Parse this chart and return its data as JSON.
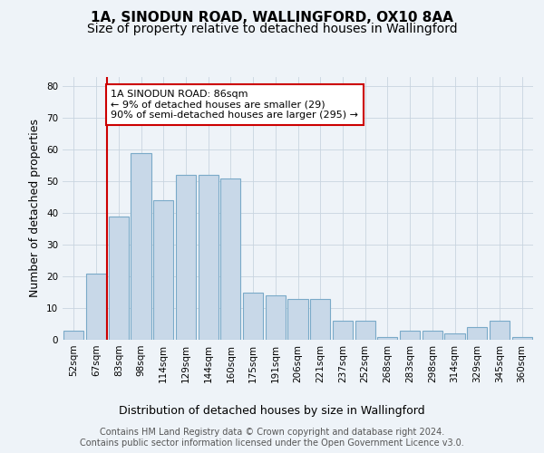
{
  "title": "1A, SINODUN ROAD, WALLINGFORD, OX10 8AA",
  "subtitle": "Size of property relative to detached houses in Wallingford",
  "xlabel": "Distribution of detached houses by size in Wallingford",
  "ylabel": "Number of detached properties",
  "categories": [
    "52sqm",
    "67sqm",
    "83sqm",
    "98sqm",
    "114sqm",
    "129sqm",
    "144sqm",
    "160sqm",
    "175sqm",
    "191sqm",
    "206sqm",
    "221sqm",
    "237sqm",
    "252sqm",
    "268sqm",
    "283sqm",
    "298sqm",
    "314sqm",
    "329sqm",
    "345sqm",
    "360sqm"
  ],
  "values": [
    3,
    21,
    39,
    59,
    44,
    52,
    52,
    51,
    15,
    14,
    13,
    13,
    6,
    6,
    1,
    3,
    3,
    2,
    4,
    6,
    1
  ],
  "bar_color": "#c8d8e8",
  "bar_edge_color": "#7aaac8",
  "red_line_color": "#cc0000",
  "annotation_text": "1A SINODUN ROAD: 86sqm\n← 9% of detached houses are smaller (29)\n90% of semi-detached houses are larger (295) →",
  "annotation_box_color": "#ffffff",
  "annotation_box_edge": "#cc0000",
  "ylim": [
    0,
    83
  ],
  "yticks": [
    0,
    10,
    20,
    30,
    40,
    50,
    60,
    70,
    80
  ],
  "grid_color": "#c8d4e0",
  "footer_text": "Contains HM Land Registry data © Crown copyright and database right 2024.\nContains public sector information licensed under the Open Government Licence v3.0.",
  "bg_color": "#eef3f8",
  "title_fontsize": 11,
  "subtitle_fontsize": 10,
  "axis_label_fontsize": 9,
  "tick_fontsize": 7.5,
  "footer_fontsize": 7.0,
  "red_line_bar_index": 2
}
